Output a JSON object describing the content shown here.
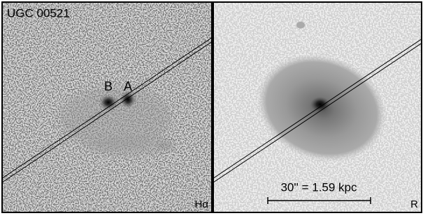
{
  "left_panel": {
    "title": "UGC 00521",
    "labels": [
      "B",
      "A"
    ],
    "band": "Hα"
  },
  "right_panel": {
    "scale_bar": "30'' = 1.59 kpc",
    "band": "R"
  }
}
